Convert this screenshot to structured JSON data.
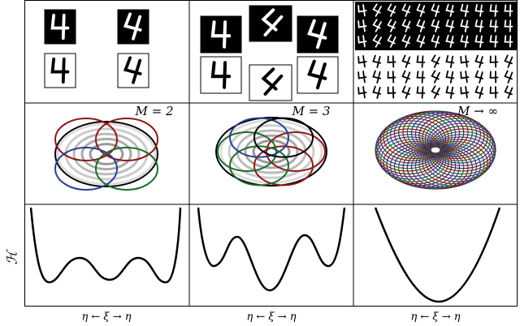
{
  "figure": {
    "y_label": "ℋ",
    "columns": [
      {
        "model_label": "M = 2",
        "x_label": "η ← ξ → η"
      },
      {
        "model_label": "M = 3",
        "x_label": "η ← ξ → η"
      },
      {
        "model_label": "M → ∞",
        "x_label": "η ← ξ → η"
      }
    ]
  }
}
